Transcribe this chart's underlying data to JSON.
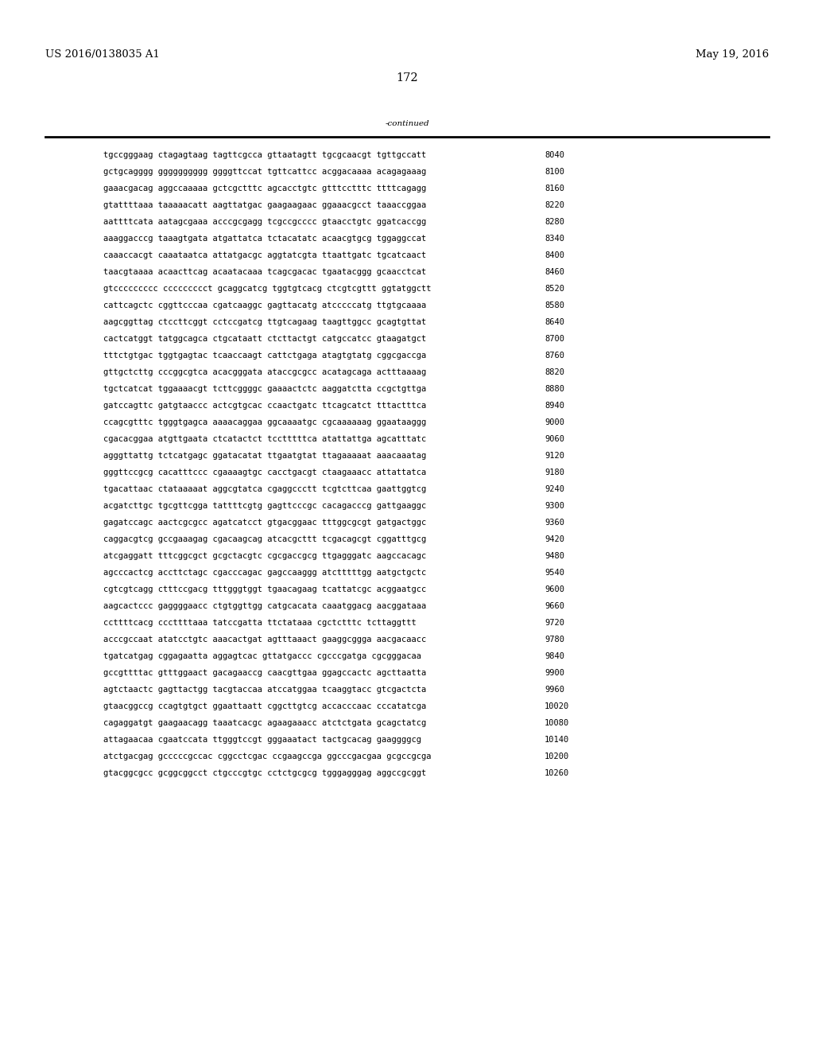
{
  "header_left": "US 2016/0138035 A1",
  "header_right": "May 19, 2016",
  "page_number": "172",
  "continued_label": "-continued",
  "background_color": "#ffffff",
  "text_color": "#000000",
  "font_size_header": 9.5,
  "font_size_body": 7.5,
  "font_size_page": 10.5,
  "sequence_lines": [
    [
      "tgccgggaag ctagagtaag tagttcgcca gttaatagtt tgcgcaacgt tgttgccatt",
      "8040"
    ],
    [
      "gctgcagggg gggggggggg ggggttccat tgttcattcc acggacaaaa acagagaaag",
      "8100"
    ],
    [
      "gaaacgacag aggccaaaaa gctcgctttc agcacctgtc gtttcctttc ttttcagagg",
      "8160"
    ],
    [
      "gtattttaaa taaaaacatt aagttatgac gaagaagaac ggaaacgcct taaaccggaa",
      "8220"
    ],
    [
      "aattttcata aatagcgaaa acccgcgagg tcgccgcccc gtaacctgtc ggatcaccgg",
      "8280"
    ],
    [
      "aaaggacccg taaagtgata atgattatca tctacatatc acaacgtgcg tggaggccat",
      "8340"
    ],
    [
      "caaaccacgt caaataatca attatgacgc aggtatcgta ttaattgatc tgcatcaact",
      "8400"
    ],
    [
      "taacgtaaaa acaacttcag acaatacaaa tcagcgacac tgaatacggg gcaacctcat",
      "8460"
    ],
    [
      "gtccccccccc ccccccccct gcaggcatcg tggtgtcacg ctcgtcgttt ggtatggctt",
      "8520"
    ],
    [
      "cattcagctc cggttcccaa cgatcaaggc gagttacatg atcccccatg ttgtgcaaaa",
      "8580"
    ],
    [
      "aagcggttag ctccttcggt cctccgatcg ttgtcagaag taagttggcc gcagtgttat",
      "8640"
    ],
    [
      "cactcatggt tatggcagca ctgcataatt ctcttactgt catgccatcc gtaagatgct",
      "8700"
    ],
    [
      "tttctgtgac tggtgagtac tcaaccaagt cattctgaga atagtgtatg cggcgaccga",
      "8760"
    ],
    [
      "gttgctcttg cccggcgtca acacgggata ataccgcgcc acatagcaga actttaaaag",
      "8820"
    ],
    [
      "tgctcatcat tggaaaacgt tcttcggggc gaaaactctc aaggatctta ccgctgttga",
      "8880"
    ],
    [
      "gatccagttc gatgtaaccc actcgtgcac ccaactgatc ttcagcatct tttactttca",
      "8940"
    ],
    [
      "ccagcgtttc tgggtgagca aaaacaggaa ggcaaaatgc cgcaaaaaag ggaataaggg",
      "9000"
    ],
    [
      "cgacacggaa atgttgaata ctcatactct tcctttttca atattattga agcatttatc",
      "9060"
    ],
    [
      "agggttattg tctcatgagc ggatacatat ttgaatgtat ttagaaaaat aaacaaatag",
      "9120"
    ],
    [
      "gggttccgcg cacatttccc cgaaaagtgc cacctgacgt ctaagaaacc attattatca",
      "9180"
    ],
    [
      "tgacattaac ctataaaaat aggcgtatca cgaggccctt tcgtcttcaa gaattggtcg",
      "9240"
    ],
    [
      "acgatcttgc tgcgttcgga tattttcgtg gagttcccgc cacagacccg gattgaaggc",
      "9300"
    ],
    [
      "gagatccagc aactcgcgcc agatcatcct gtgacggaac tttggcgcgt gatgactggc",
      "9360"
    ],
    [
      "caggacgtcg gccgaaagag cgacaagcag atcacgcttt tcgacagcgt cggatttgcg",
      "9420"
    ],
    [
      "atcgaggatt tttcggcgct gcgctacgtc cgcgaccgcg ttgagggatc aagccacagc",
      "9480"
    ],
    [
      "agcccactcg accttctagc cgacccagac gagccaaggg atctttttgg aatgctgctc",
      "9540"
    ],
    [
      "cgtcgtcagg ctttccgacg tttgggtggt tgaacagaag tcattatcgc acggaatgcc",
      "9600"
    ],
    [
      "aagcactccc gaggggaacc ctgtggttgg catgcacata caaatggacg aacggataaa",
      "9660"
    ],
    [
      "ccttttcacg cccttttaaa tatccgatta ttctataaa cgctctttc tcttaggttt",
      "9720"
    ],
    [
      "acccgccaat atatcctgtc aaacactgat agtttaaact gaaggcggga aacgacaacc",
      "9780"
    ],
    [
      "tgatcatgag cggagaatta aggagtcac gttatgaccc cgcccgatga cgcgggacaa",
      "9840"
    ],
    [
      "gccgttttac gtttggaact gacagaaccg caacgttgaa ggagccactc agcttaatta",
      "9900"
    ],
    [
      "agtctaactc gagttactgg tacgtaccaa atccatggaa tcaaggtacc gtcgactcta",
      "9960"
    ],
    [
      "gtaacggccg ccagtgtgct ggaattaatt cggcttgtcg accacccaac cccatatcga",
      "10020"
    ],
    [
      "cagaggatgt gaagaacagg taaatcacgc agaagaaacc atctctgata gcagctatcg",
      "10080"
    ],
    [
      "attagaacaa cgaatccata ttgggtccgt gggaaatact tactgcacag gaaggggcg",
      "10140"
    ],
    [
      "atctgacgag gcccccgccac cggcctcgac ccgaagccga ggcccgacgaa gcgccgcga",
      "10200"
    ],
    [
      "gtacggcgcc gcggcggcct ctgcccgtgc cctctgcgcg tgggagggag aggccgcggt",
      "10260"
    ]
  ]
}
